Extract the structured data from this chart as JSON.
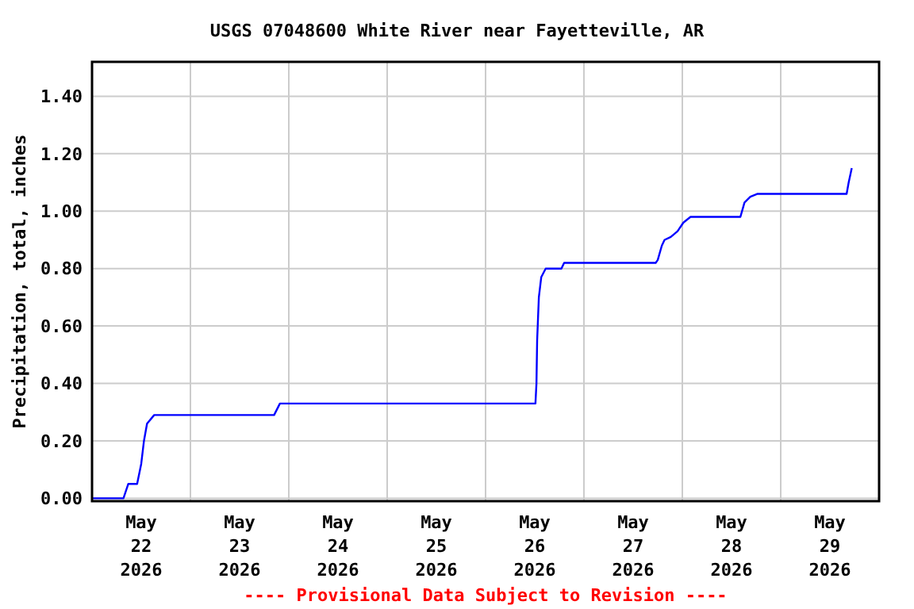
{
  "chart_data": {
    "type": "line",
    "title": "USGS 07048600 White River near Fayetteville, AR",
    "ylabel": "Precipitation, total, inches",
    "annotations": [
      "---- Provisional Data Subject to Revision ----"
    ],
    "x": [
      "2026-05-22T00:00",
      "2026-05-22T07:40",
      "2026-05-22T08:50",
      "2026-05-22T11:00",
      "2026-05-22T12:00",
      "2026-05-22T12:40",
      "2026-05-22T13:25",
      "2026-05-22T15:10",
      "2026-05-23T20:25",
      "2026-05-23T21:50",
      "2026-05-26T12:10",
      "2026-05-26T12:25",
      "2026-05-26T12:35",
      "2026-05-26T13:00",
      "2026-05-26T13:35",
      "2026-05-26T14:40",
      "2026-05-26T18:30",
      "2026-05-26T19:10",
      "2026-05-27T17:30",
      "2026-05-27T18:00",
      "2026-05-27T19:00",
      "2026-05-27T19:40",
      "2026-05-27T21:10",
      "2026-05-27T22:50",
      "2026-05-28T00:15",
      "2026-05-28T02:00",
      "2026-05-28T14:10",
      "2026-05-28T15:10",
      "2026-05-28T16:35",
      "2026-05-28T18:15",
      "2026-05-29T16:05",
      "2026-05-29T16:35",
      "2026-05-29T17:20"
    ],
    "series": [
      {
        "color": "#0000ff",
        "values": [
          0,
          0,
          0.05,
          0.05,
          0.12,
          0.2,
          0.26,
          0.29,
          0.29,
          0.33,
          0.33,
          0.4,
          0.55,
          0.7,
          0.77,
          0.8,
          0.8,
          0.82,
          0.82,
          0.83,
          0.88,
          0.9,
          0.91,
          0.93,
          0.96,
          0.98,
          0.98,
          1.03,
          1.05,
          1.06,
          1.06,
          1.1,
          1.15
        ]
      }
    ],
    "xlim": [
      "2026-05-22T00:00",
      "2026-05-30T00:00"
    ],
    "xticks": [
      {
        "value": "2026-05-22T12:00",
        "label": "May\n22\n2026"
      },
      {
        "value": "2026-05-23T12:00",
        "label": "May\n23\n2026"
      },
      {
        "value": "2026-05-24T12:00",
        "label": "May\n24\n2026"
      },
      {
        "value": "2026-05-25T12:00",
        "label": "May\n25\n2026"
      },
      {
        "value": "2026-05-26T12:00",
        "label": "May\n26\n2026"
      },
      {
        "value": "2026-05-27T12:00",
        "label": "May\n27\n2026"
      },
      {
        "value": "2026-05-28T12:00",
        "label": "May\n28\n2026"
      },
      {
        "value": "2026-05-29T12:00",
        "label": "May\n29\n2026"
      },
      {
        "value": "2026-05-23T00:00",
        "label": null
      },
      {
        "value": "2026-05-24T00:00",
        "label": null
      },
      {
        "value": "2026-05-25T00:00",
        "label": null
      },
      {
        "value": "2026-05-26T00:00",
        "label": null
      },
      {
        "value": "2026-05-27T00:00",
        "label": null
      },
      {
        "value": "2026-05-28T00:00",
        "label": null
      },
      {
        "value": "2026-05-29T00:00",
        "label": null
      }
    ],
    "ylim": [
      -0.01,
      1.52
    ],
    "yticks": [
      {
        "value": 0,
        "label": "0.00"
      },
      {
        "value": 0.2,
        "label": "0.20"
      },
      {
        "value": 0.4,
        "label": "0.40"
      },
      {
        "value": 0.6,
        "label": "0.60"
      },
      {
        "value": 0.8,
        "label": "0.80"
      },
      {
        "value": 1,
        "label": "1.00"
      },
      {
        "value": 1.2,
        "label": "1.20"
      },
      {
        "value": 1.4,
        "label": "1.40"
      }
    ],
    "grid": true,
    "marker": "none",
    "line_style": "solid"
  }
}
